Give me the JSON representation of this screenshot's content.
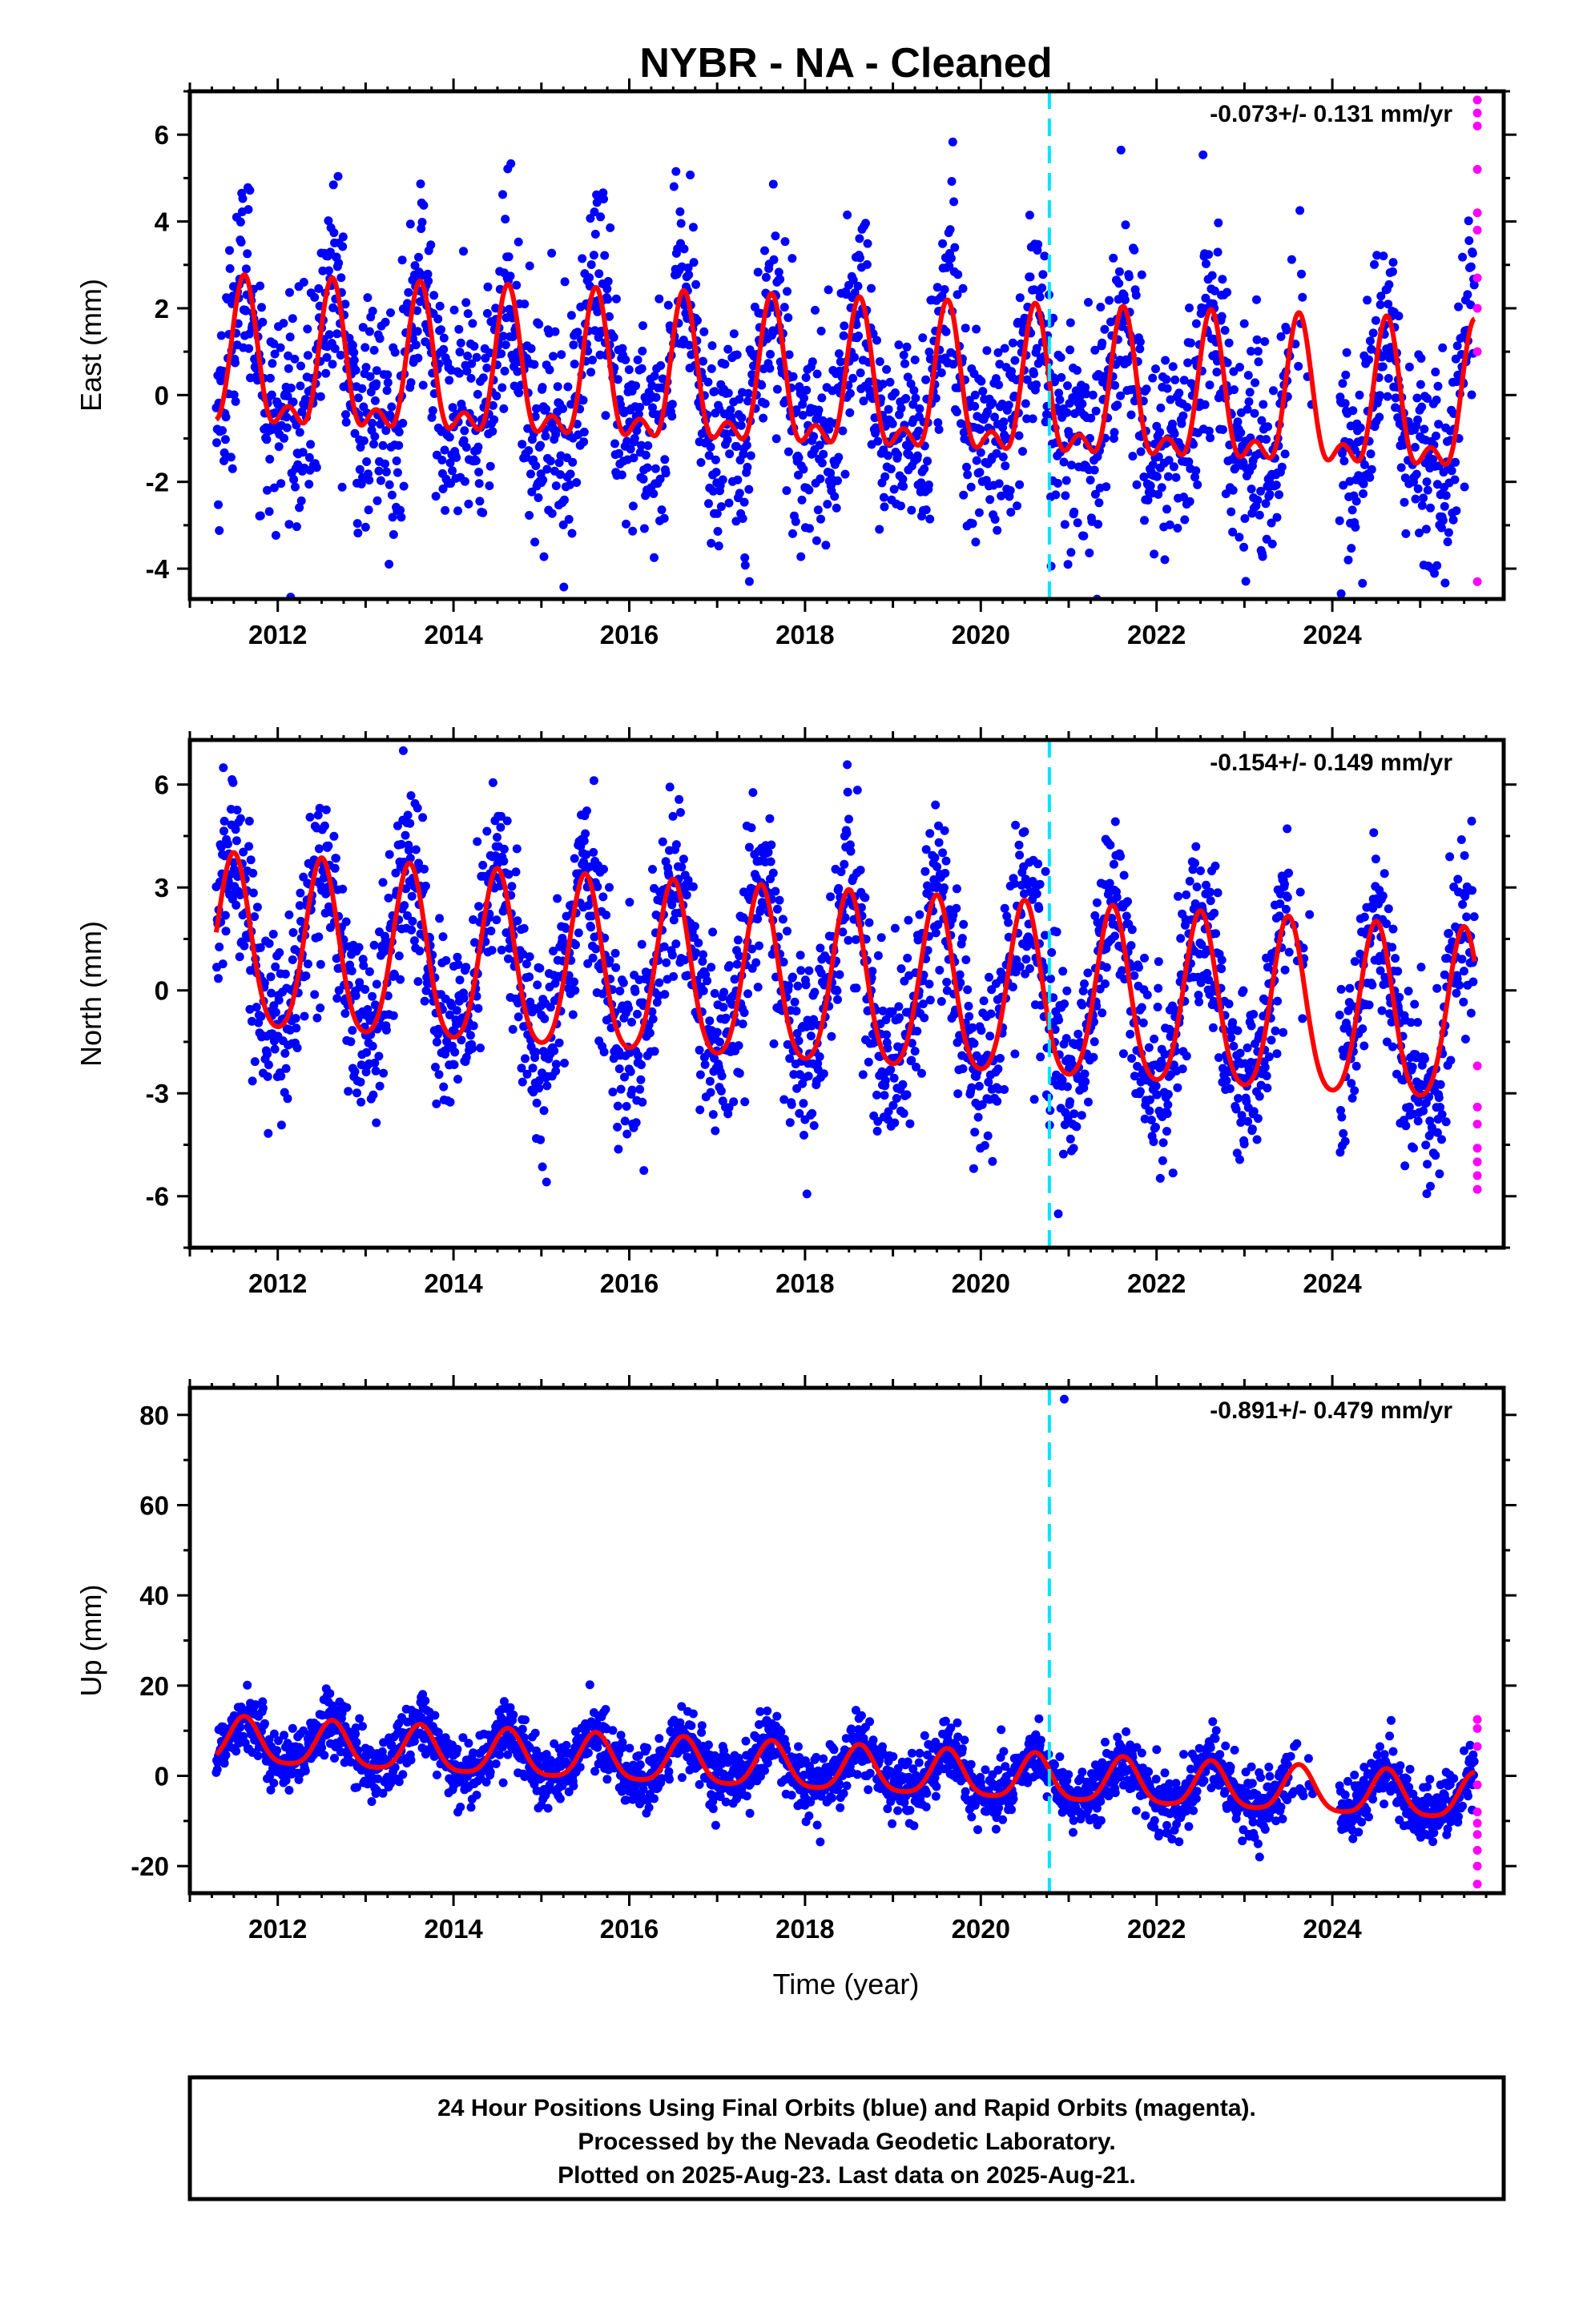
{
  "title": "NYBR  - NA - Cleaned",
  "colors": {
    "final_orbits": "#0000ff",
    "rapid_orbits": "#ff00ff",
    "model": "#ff0000",
    "event_line": "#00e5ff",
    "frame": "#000000"
  },
  "x_axis": {
    "label": "Time (year)",
    "range": [
      2011.0,
      2025.95
    ],
    "ticks": [
      2012,
      2014,
      2016,
      2018,
      2020,
      2022,
      2024
    ]
  },
  "event_year": 2020.78,
  "footer": {
    "line1": "24 Hour Positions Using Final Orbits (blue) and Rapid Orbits (magenta).",
    "line2": "Processed by the Nevada Geodetic Laboratory.",
    "line3": "Plotted on 2025-Aug-23. Last data on 2025-Aug-21."
  },
  "chart_data": [
    {
      "type": "scatter",
      "id": "east",
      "ylabel": "East (mm)",
      "rate": "-0.073+/- 0.131 mm/yr",
      "ylim": [
        -4.7,
        7.0
      ],
      "yticks": [
        -4,
        -2,
        0,
        2,
        4,
        6
      ],
      "data_start": 2011.3,
      "data_end": 2025.62,
      "model": {
        "offset": 0.55,
        "trend": -0.073,
        "annual_amplitude": 1.5,
        "semiannual_amplitude": 0.75,
        "annual_peak_year_fraction": 0.62,
        "trend_reference_year": 2011.3
      },
      "scatter_noise": 1.25,
      "rapid_points": [
        {
          "x": 2025.65,
          "y": 6.8
        },
        {
          "x": 2025.65,
          "y": 6.5
        },
        {
          "x": 2025.65,
          "y": 6.2
        },
        {
          "x": 2025.65,
          "y": 5.2
        },
        {
          "x": 2025.65,
          "y": 4.2
        },
        {
          "x": 2025.65,
          "y": 3.8
        },
        {
          "x": 2025.65,
          "y": 2.7
        },
        {
          "x": 2025.65,
          "y": 2.0
        },
        {
          "x": 2025.65,
          "y": 1.0
        },
        {
          "x": 2025.65,
          "y": -4.3
        }
      ]
    },
    {
      "type": "scatter",
      "id": "north",
      "ylabel": "North (mm)",
      "rate": "-0.154+/- 0.149 mm/yr",
      "ylim": [
        -7.5,
        7.3
      ],
      "yticks": [
        -6,
        -3,
        0,
        3,
        6
      ],
      "data_start": 2011.3,
      "data_end": 2025.62,
      "model": {
        "offset": 1.2,
        "trend": -0.154,
        "annual_amplitude": 2.5,
        "semiannual_amplitude": 0.35,
        "annual_peak_year_fraction": 0.5,
        "trend_reference_year": 2011.3
      },
      "scatter_noise": 1.35,
      "rapid_points": [
        {
          "x": 2025.65,
          "y": -2.2
        },
        {
          "x": 2025.65,
          "y": -3.4
        },
        {
          "x": 2025.65,
          "y": -3.9
        },
        {
          "x": 2025.65,
          "y": -4.6
        },
        {
          "x": 2025.65,
          "y": -5.0
        },
        {
          "x": 2025.65,
          "y": -5.4
        },
        {
          "x": 2025.65,
          "y": -5.8
        }
      ]
    },
    {
      "type": "scatter",
      "id": "up",
      "ylabel": "Up (mm)",
      "rate": "-0.891+/- 0.479 mm/yr",
      "ylim": [
        -26,
        86
      ],
      "yticks": [
        -20,
        0,
        20,
        40,
        60,
        80
      ],
      "data_start": 2011.3,
      "data_end": 2025.62,
      "model": {
        "offset": 7.5,
        "trend": -0.891,
        "annual_amplitude": 5.0,
        "semiannual_amplitude": 1.0,
        "annual_peak_year_fraction": 0.62,
        "trend_reference_year": 2011.3
      },
      "scatter_noise": 3.5,
      "outliers": [
        {
          "x": 2020.95,
          "y": 83.5
        }
      ],
      "rapid_points": [
        {
          "x": 2025.65,
          "y": 12.5
        },
        {
          "x": 2025.65,
          "y": 10.5
        },
        {
          "x": 2025.65,
          "y": 6.5
        },
        {
          "x": 2025.65,
          "y": -2.0
        },
        {
          "x": 2025.65,
          "y": -8.0
        },
        {
          "x": 2025.65,
          "y": -10.5
        },
        {
          "x": 2025.65,
          "y": -13.0
        },
        {
          "x": 2025.65,
          "y": -16.5
        },
        {
          "x": 2025.65,
          "y": -20.0
        },
        {
          "x": 2025.65,
          "y": -24.0
        }
      ]
    }
  ]
}
